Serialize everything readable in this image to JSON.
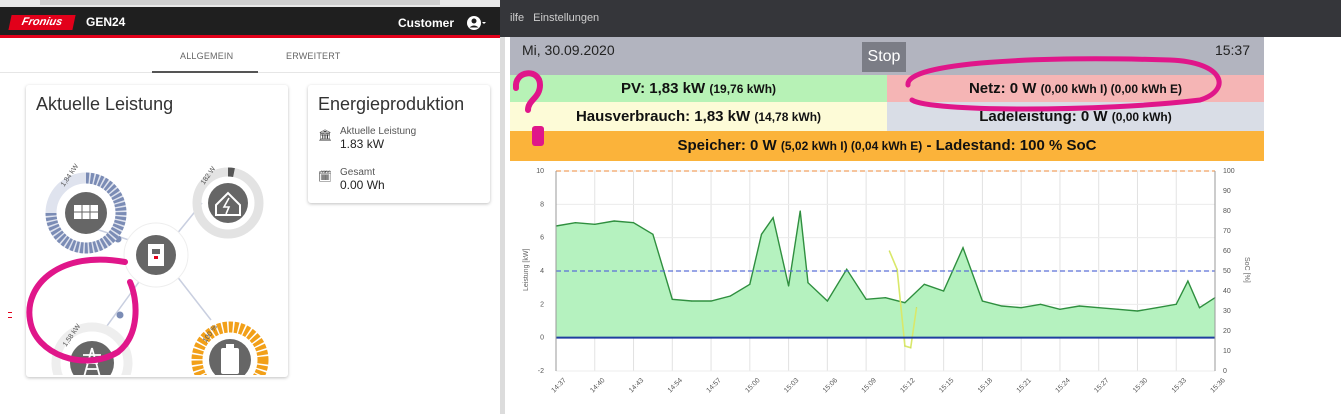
{
  "app": {
    "logo_text": "Fronius",
    "name": "GEN24",
    "user_role": "Customer",
    "tabs": [
      "ALLGEMEIN",
      "ERWEITERT"
    ],
    "active_tab": "ALLGEMEIN"
  },
  "power_card": {
    "title": "Aktuelle Leistung",
    "pv_label": "1,84 kW",
    "home_label": "182 W",
    "grid_label": "1,58 kW",
    "battery_label": "100 %"
  },
  "energy_card": {
    "title": "Energieproduktion",
    "current_label": "Aktuelle Leistung",
    "current_value": "1.83 kW",
    "total_label": "Gesamt",
    "total_value": "0.00 Wh"
  },
  "browser_menu": {
    "items": [
      "ilfe",
      "Einstellungen"
    ]
  },
  "monitor": {
    "date": "Mi, 30.09.2020",
    "time": "15:37",
    "stop_label": "Stop",
    "pv_main": "PV: 1,83 kW",
    "pv_detail": "(19,76 kWh)",
    "netz_main": "Netz: 0 W",
    "netz_detail": "(0,00 kWh I) (0,00 kWh E)",
    "haus_main": "Hausverbrauch: 1,83 kW",
    "haus_detail": "(14,78 kWh)",
    "lade_main": "Ladeleistung: 0 W",
    "lade_detail": "(0,00 kWh)",
    "speicher_main": "Speicher: 0 W",
    "speicher_detail": "(5,02 kWh I) (0,04 kWh E)",
    "speicher_soc": "- Ladestand: 100 % SoC"
  },
  "colors": {
    "fronius_red": "#e2001a",
    "pv_green": "#b7f2b6",
    "netz_red": "#f5b5b5",
    "haus_yellow": "#fdfbd7",
    "lade_grey": "#d9dde6",
    "speicher_orange": "#fbb33a",
    "annotation_magenta": "#e0168a",
    "pv_icon_blue": "#7b8cb5",
    "battery_orange": "#f2a019"
  },
  "chart_data": {
    "type": "area",
    "ylabel": "Leistung [kW]",
    "y2label": "SoC [%]",
    "ylim": [
      -2,
      10
    ],
    "y2lim": [
      0,
      100
    ],
    "yticks": [
      -2,
      0,
      2,
      4,
      6,
      8,
      10
    ],
    "y2ticks": [
      0,
      10,
      20,
      30,
      40,
      50,
      60,
      70,
      80,
      90,
      100
    ],
    "x_ticks": [
      "14:37",
      "14:40",
      "14:43",
      "14:54",
      "14:57",
      "15:00",
      "15:03",
      "15:06",
      "15:09",
      "15:12",
      "15:15",
      "15:18",
      "15:21",
      "15:24",
      "15:27",
      "15:30",
      "15:33",
      "15:36"
    ],
    "grid": true,
    "series": [
      {
        "name": "",
        "type": "area",
        "x": [
          0,
          0.5,
          1,
          1.5,
          2,
          2.5,
          3,
          3.5,
          4,
          4.5,
          5,
          5.3,
          5.6,
          6,
          6.3,
          6.5,
          7,
          7.5,
          8,
          8.5,
          9,
          9.5,
          10,
          10.5,
          11,
          11.5,
          12,
          12.5,
          13,
          13.5,
          14,
          14.5,
          15,
          15.5,
          16,
          16.3,
          16.6,
          17
        ],
        "values": [
          6.7,
          6.9,
          6.8,
          7.0,
          6.9,
          6.2,
          2.3,
          2.2,
          2.2,
          2.5,
          3.2,
          6.2,
          7.2,
          3.1,
          7.6,
          3.3,
          2.2,
          4.1,
          2.3,
          2.4,
          2.1,
          3.2,
          2.8,
          5.4,
          2.2,
          1.9,
          1.8,
          2.0,
          1.7,
          1.9,
          1.8,
          1.7,
          1.6,
          1.8,
          2.0,
          3.4,
          1.8,
          2.4
        ]
      },
      {
        "name": "",
        "type": "line",
        "x": [
          8.6,
          8.8,
          9.0,
          9.15,
          9.3
        ],
        "values": [
          5.2,
          4.1,
          -0.5,
          -0.6,
          1.8
        ]
      }
    ],
    "reference_lines": [
      {
        "axis": "y2",
        "value": 50,
        "style": "dashed",
        "color": "#5a6fd6"
      },
      {
        "axis": "y2",
        "value": 100,
        "style": "dashed",
        "color": "#f0a060"
      },
      {
        "axis": "y",
        "value": 0,
        "style": "solid",
        "color": "#1f3f9f"
      }
    ]
  }
}
